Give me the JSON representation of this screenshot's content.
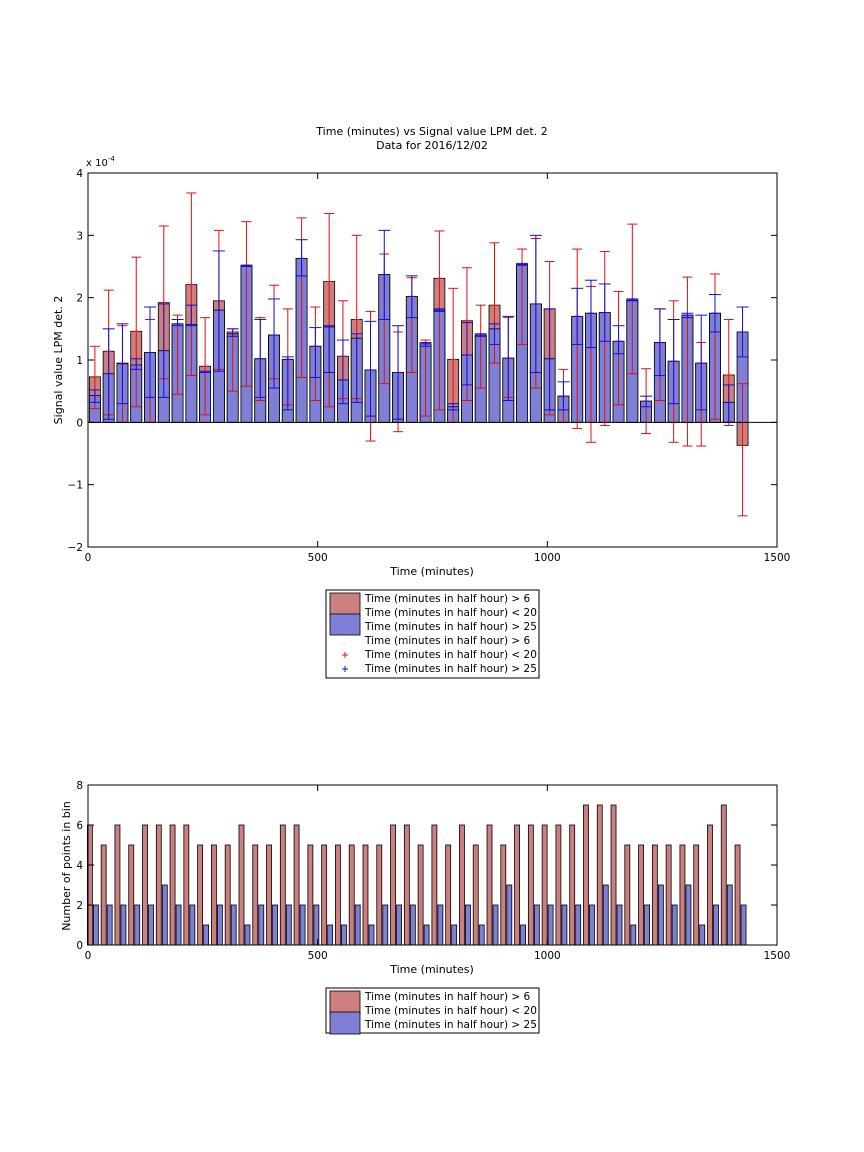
{
  "colors": {
    "red_fill": "#cc7f7f",
    "blue_fill": "#7f7fd6",
    "red_err": "#e01010",
    "blue_err": "#1010d8",
    "axis": "#000000",
    "background": "#ffffff"
  },
  "chart_data": [
    {
      "type": "bar",
      "title": "Time (minutes) vs Signal value LPM det. 2",
      "subtitle": "Data for 2016/12/02",
      "xlabel": "Time (minutes)",
      "ylabel": "Signal value LPM det. 2",
      "y_exponent": "x 10",
      "y_exponent_power": "-4",
      "xlim": [
        0,
        1500
      ],
      "ylim": [
        -2,
        4
      ],
      "xticks": [
        "0",
        "500",
        "1000",
        "1500"
      ],
      "yticks": [
        "−2",
        "−1",
        "0",
        "1",
        "2",
        "3",
        "4"
      ],
      "grid": false,
      "legend_position": "below",
      "legend": [
        "Time (minutes in half hour) > 6",
        "Time (minutes in half hour) < 20",
        "Time (minutes in half hour) > 25",
        "Time (minutes in half hour) > 6",
        "Time (minutes in half hour) < 20",
        "Time (minutes in half hour) > 25"
      ],
      "bin_width_minutes": 30,
      "x": [
        15,
        45,
        75,
        105,
        135,
        165,
        195,
        225,
        255,
        285,
        315,
        345,
        375,
        405,
        435,
        465,
        495,
        525,
        555,
        585,
        615,
        645,
        675,
        705,
        735,
        765,
        795,
        825,
        855,
        885,
        915,
        945,
        975,
        1005,
        1035,
        1065,
        1095,
        1125,
        1155,
        1185,
        1215,
        1245,
        1275,
        1305,
        1335,
        1365,
        1395,
        1425
      ],
      "series": [
        {
          "values": [
            0.73,
            1.14,
            0.95,
            1.46,
            1.12,
            1.92,
            1.58,
            2.21,
            0.9,
            1.95,
            1.45,
            2.52,
            1.02,
            1.4,
            1.01,
            2.63,
            1.22,
            2.26,
            1.06,
            1.65,
            0.84,
            2.37,
            0.8,
            2.02,
            1.26,
            2.31,
            1.01,
            1.63,
            1.4,
            1.88,
            1.03,
            2.53,
            1.9,
            1.82,
            0.42,
            1.7,
            1.75,
            1.76,
            1.3,
            1.96,
            0.34,
            1.28,
            0.98,
            1.72,
            0.95,
            1.75,
            0.76,
            -0.37
          ],
          "err_low": [
            0.22,
            0.12,
            0.0,
            0.25,
            0.0,
            0.7,
            0.45,
            0.75,
            0.12,
            0.85,
            0.5,
            0.58,
            0.35,
            0.7,
            0.28,
            0.72,
            0.35,
            0.25,
            0.38,
            0.38,
            -0.3,
            0.62,
            -0.15,
            0.8,
            0.1,
            0.2,
            0.0,
            0.35,
            0.55,
            0.95,
            0.4,
            1.25,
            0.55,
            0.12,
            0.0,
            -0.1,
            -0.32,
            -0.05,
            0.28,
            0.78,
            -0.18,
            0.35,
            -0.32,
            -0.38,
            -0.38,
            0.05,
            -0.05,
            -1.5
          ],
          "err_high": [
            1.22,
            2.12,
            1.55,
            2.65,
            1.65,
            3.15,
            1.72,
            3.68,
            1.68,
            3.08,
            1.5,
            3.22,
            1.68,
            2.2,
            1.82,
            3.28,
            1.85,
            3.35,
            1.95,
            3.0,
            1.78,
            2.7,
            1.45,
            2.32,
            1.32,
            3.07,
            2.15,
            2.48,
            1.88,
            2.88,
            1.68,
            2.78,
            2.95,
            2.58,
            0.85,
            2.78,
            2.18,
            2.74,
            2.1,
            3.18,
            0.86,
            1.82,
            1.95,
            2.33,
            1.28,
            2.38,
            1.65,
            0.62
          ]
        },
        {
          "values": [
            0.43,
            0.78,
            0.94,
            0.92,
            1.12,
            1.15,
            1.58,
            1.57,
            0.8,
            1.8,
            1.42,
            2.52,
            1.02,
            1.4,
            1.01,
            2.63,
            1.22,
            1.53,
            0.68,
            1.35,
            0.84,
            2.37,
            0.8,
            2.02,
            1.26,
            1.8,
            0.25,
            1.08,
            1.4,
            1.5,
            1.03,
            2.53,
            1.9,
            1.02,
            0.42,
            1.7,
            1.75,
            1.76,
            1.3,
            1.96,
            0.34,
            1.28,
            0.98,
            1.72,
            0.95,
            1.75,
            0.32,
            1.45
          ],
          "err_low": [
            0.32,
            0.05,
            0.3,
            0.85,
            0.4,
            0.4,
            1.55,
            1.55,
            0.8,
            0.82,
            1.38,
            2.5,
            0.4,
            0.55,
            0.2,
            2.35,
            0.72,
            0.8,
            0.3,
            0.32,
            0.1,
            1.65,
            0.05,
            1.68,
            1.22,
            1.78,
            0.2,
            0.6,
            1.38,
            1.25,
            0.35,
            2.52,
            0.8,
            0.2,
            0.2,
            1.25,
            1.2,
            1.3,
            1.1,
            1.95,
            0.25,
            0.75,
            0.3,
            1.68,
            0.2,
            1.45,
            0.0,
            1.05
          ],
          "err_high": [
            0.52,
            1.5,
            1.58,
            1.02,
            1.85,
            1.9,
            1.65,
            1.88,
            0.82,
            2.75,
            1.5,
            2.52,
            1.65,
            1.98,
            1.05,
            2.93,
            1.52,
            1.55,
            1.32,
            1.42,
            1.62,
            3.08,
            1.55,
            2.35,
            1.28,
            1.82,
            0.3,
            1.6,
            1.42,
            1.58,
            1.7,
            2.55,
            3.0,
            1.82,
            0.65,
            2.15,
            2.28,
            2.22,
            1.55,
            1.98,
            0.42,
            1.82,
            1.65,
            1.75,
            1.72,
            2.05,
            0.6,
            1.85
          ]
        }
      ]
    },
    {
      "type": "bar",
      "xlabel": "Time (minutes)",
      "ylabel": "Number of points in bin",
      "xlim": [
        0,
        1500
      ],
      "ylim": [
        0,
        8
      ],
      "xticks": [
        "0",
        "500",
        "1000",
        "1500"
      ],
      "yticks": [
        "0",
        "2",
        "4",
        "6",
        "8"
      ],
      "grid": false,
      "legend_position": "below",
      "legend": [
        "Time (minutes in half hour) > 6",
        "Time (minutes in half hour) < 20",
        "Time (minutes in half hour) > 25"
      ],
      "x": [
        15,
        45,
        75,
        105,
        135,
        165,
        195,
        225,
        255,
        285,
        315,
        345,
        375,
        405,
        435,
        465,
        495,
        525,
        555,
        585,
        615,
        645,
        675,
        705,
        735,
        765,
        795,
        825,
        855,
        885,
        915,
        945,
        975,
        1005,
        1035,
        1065,
        1095,
        1125,
        1155,
        1185,
        1215,
        1245,
        1275,
        1305,
        1335,
        1365,
        1395,
        1425
      ],
      "series": [
        {
          "values": [
            6,
            5,
            6,
            5,
            6,
            6,
            6,
            6,
            5,
            5,
            5,
            6,
            5,
            5,
            6,
            6,
            5,
            5,
            5,
            5,
            5,
            5,
            6,
            6,
            5,
            6,
            5,
            6,
            5,
            6,
            5,
            6,
            6,
            6,
            6,
            6,
            7,
            7,
            7,
            5,
            5,
            5,
            5,
            5,
            5,
            6,
            7,
            5
          ]
        },
        {
          "values": [
            2,
            2,
            2,
            2,
            2,
            3,
            2,
            2,
            1,
            2,
            2,
            1,
            2,
            2,
            2,
            2,
            2,
            1,
            1,
            2,
            1,
            2,
            2,
            2,
            1,
            2,
            1,
            2,
            1,
            2,
            3,
            1,
            2,
            2,
            2,
            2,
            2,
            3,
            2,
            1,
            2,
            3,
            2,
            3,
            1,
            2,
            3,
            2
          ]
        }
      ]
    }
  ]
}
